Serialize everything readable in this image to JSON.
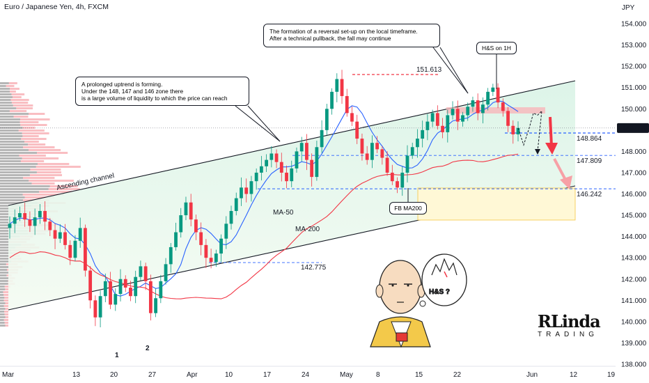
{
  "header": {
    "title": "Euro / Japanese Yen, 4h, FXCM"
  },
  "axis": {
    "currency": "JPY"
  },
  "colors": {
    "bull": "#089981",
    "bear": "#f23645",
    "channel_fill": "#d7f2e4",
    "ma50": "#2962ff",
    "ma200": "#f23645",
    "level_blue": "#2962ff",
    "level_red": "#f23645",
    "current_price": "#131722"
  },
  "current_price": "149.099",
  "callouts": {
    "uptrend": "A prolonged uptrend is forming.\nUnder the 148, 147 and 146 zone there\nis a large volume of liquidity to which the price can reach",
    "reversal": "The formation of a reversal set-up on the local timeframe.\nAfter a technical pullback, the fall may continue",
    "hs": "H&S on 1H",
    "fb": "FB MA200"
  },
  "cartoon": {
    "bubble_text": "H&S ?"
  },
  "logo": {
    "top": "RLinda",
    "bottom": "TRADING"
  },
  "chart_data": {
    "type": "candlestick",
    "ylim": [
      137.8,
      155.0
    ],
    "y_ticks": [
      "138.000",
      "139.000",
      "140.000",
      "141.000",
      "142.000",
      "143.000",
      "144.000",
      "145.000",
      "146.000",
      "147.000",
      "148.000",
      "149.000",
      "150.000",
      "151.000",
      "152.000",
      "153.000",
      "154.000"
    ],
    "x_ticks": [
      "Mar",
      "13",
      "20",
      "27",
      "Apr",
      "10",
      "17",
      "24",
      "May",
      "8",
      "15",
      "22",
      "Jun",
      "12",
      "19"
    ],
    "levels": [
      {
        "label": "151.613",
        "value": 151.613,
        "style": "red-dashed"
      },
      {
        "label": "148.864",
        "value": 148.864,
        "style": "blue-dashed"
      },
      {
        "label": "147.809",
        "value": 147.809,
        "style": "blue-dashed"
      },
      {
        "label": "146.242",
        "value": 146.242,
        "style": "blue-dashed"
      },
      {
        "label": "142.775",
        "value": 142.775,
        "style": "blue-dashed"
      }
    ],
    "annotations": [
      "Ascending channel",
      "MA-50",
      "MA-200",
      "1",
      "2"
    ],
    "ohlc_closes": [
      144.6,
      144.9,
      145.1,
      144.8,
      144.5,
      144.9,
      145.2,
      144.7,
      144.3,
      143.9,
      144.2,
      143.6,
      143.0,
      143.8,
      144.4,
      142.4,
      141.0,
      140.2,
      141.2,
      141.9,
      140.8,
      141.3,
      142.0,
      141.6,
      141.2,
      142.1,
      142.6,
      141.9,
      140.4,
      141.1,
      141.9,
      142.7,
      143.5,
      144.2,
      145.0,
      145.6,
      144.8,
      144.2,
      143.6,
      143.0,
      142.8,
      143.2,
      143.9,
      144.6,
      145.2,
      145.8,
      146.3,
      146.0,
      146.6,
      147.0,
      147.3,
      147.6,
      147.9,
      147.5,
      147.0,
      146.6,
      147.2,
      148.0,
      148.4,
      147.6,
      146.8,
      148.2,
      149.0,
      150.0,
      150.8,
      151.4,
      150.6,
      149.8,
      149.4,
      148.6,
      147.9,
      147.6,
      148.4,
      148.1,
      147.7,
      147.0,
      146.6,
      146.3,
      147.0,
      147.8,
      148.2,
      148.6,
      149.0,
      149.4,
      149.8,
      149.2,
      148.9,
      149.7,
      150.0,
      149.4,
      149.7,
      150.1,
      150.4,
      149.8,
      150.2,
      150.8,
      151.0,
      150.3,
      149.9,
      149.2,
      148.8,
      149.1
    ],
    "projection": [
      149.1,
      148.3,
      149.1,
      149.8,
      149.7,
      149.9,
      148.0
    ]
  }
}
